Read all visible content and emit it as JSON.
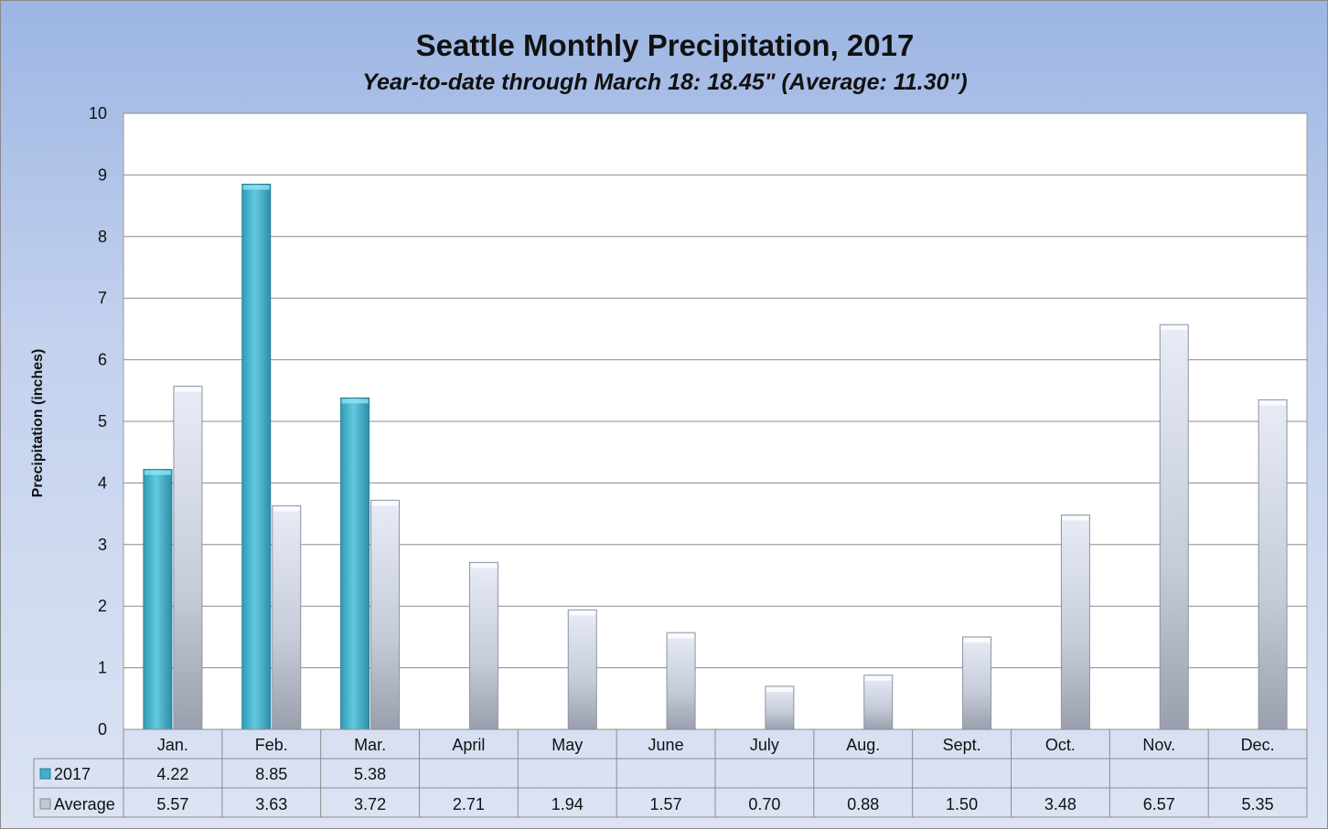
{
  "chart_data": {
    "type": "bar",
    "title": "Seattle Monthly Precipitation, 2017",
    "subtitle": "Year-to-date through March 18: 18.45\" (Average: 11.30\")",
    "xlabel": "",
    "ylabel": "Precipitation (inches)",
    "ylim": [
      0,
      10
    ],
    "yticks": [
      "0",
      "1",
      "2",
      "3",
      "4",
      "5",
      "6",
      "7",
      "8",
      "9",
      "10"
    ],
    "grid": true,
    "legend": "data-table",
    "categories": [
      "Jan.",
      "Feb.",
      "Mar.",
      "April",
      "May",
      "June",
      "July",
      "Aug.",
      "Sept.",
      "Oct.",
      "Nov.",
      "Dec."
    ],
    "series": [
      {
        "name": "2017",
        "color": "#4bb8d0",
        "values": [
          4.22,
          8.85,
          5.38,
          null,
          null,
          null,
          null,
          null,
          null,
          null,
          null,
          null
        ],
        "labels": [
          "4.22",
          "8.85",
          "5.38",
          "",
          "",
          "",
          "",
          "",
          "",
          "",
          "",
          ""
        ]
      },
      {
        "name": "Average",
        "color": "#c9cfdf",
        "values": [
          5.57,
          3.63,
          3.72,
          2.71,
          1.94,
          1.57,
          0.7,
          0.88,
          1.5,
          3.48,
          6.57,
          5.35
        ],
        "labels": [
          "5.57",
          "3.63",
          "3.72",
          "2.71",
          "1.94",
          "1.57",
          "0.70",
          "0.88",
          "1.50",
          "3.48",
          "6.57",
          "5.35"
        ]
      }
    ]
  }
}
